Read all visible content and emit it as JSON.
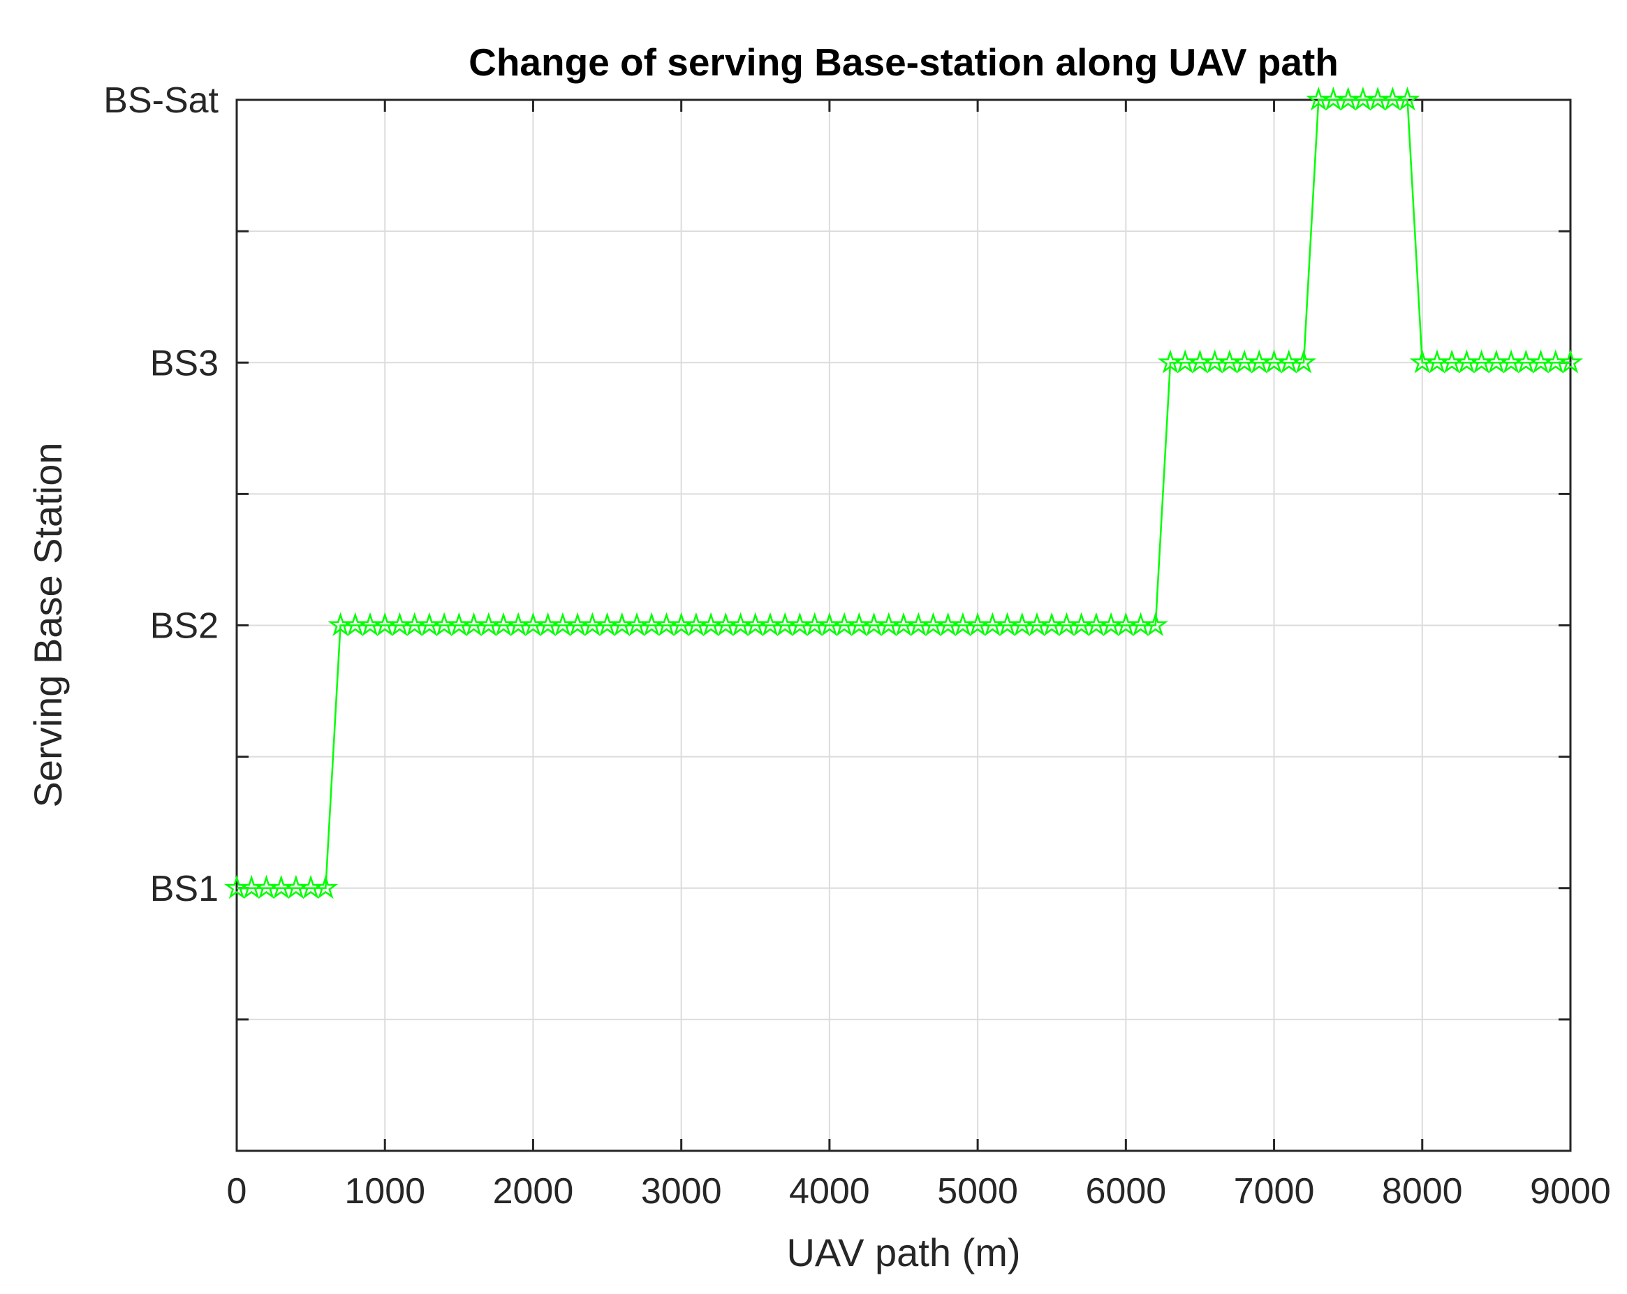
{
  "chart_data": {
    "type": "line",
    "title": "Change of serving Base-station along UAV path",
    "xlabel": "UAV path (m)",
    "ylabel": "Serving Base Station",
    "xlim": [
      0,
      9000
    ],
    "ylim": [
      0,
      4
    ],
    "x_ticks": [
      0,
      1000,
      2000,
      3000,
      4000,
      5000,
      6000,
      7000,
      8000,
      9000
    ],
    "x_tick_labels": [
      "0",
      "1000",
      "2000",
      "3000",
      "4000",
      "5000",
      "6000",
      "7000",
      "8000",
      "9000"
    ],
    "y_ticks": [
      0.5,
      1,
      1.5,
      2,
      2.5,
      3,
      3.5,
      4
    ],
    "y_tick_labels": [
      "",
      "BS1",
      "",
      "BS2",
      "",
      "BS3",
      "",
      "BS-Sat"
    ],
    "grid": true,
    "series": [
      {
        "color": "#00ff00",
        "marker": "pentagram",
        "x": [
          0,
          100,
          200,
          300,
          400,
          500,
          600,
          700,
          800,
          900,
          1000,
          1100,
          1200,
          1300,
          1400,
          1500,
          1600,
          1700,
          1800,
          1900,
          2000,
          2100,
          2200,
          2300,
          2400,
          2500,
          2600,
          2700,
          2800,
          2900,
          3000,
          3100,
          3200,
          3300,
          3400,
          3500,
          3600,
          3700,
          3800,
          3900,
          4000,
          4100,
          4200,
          4300,
          4400,
          4500,
          4600,
          4700,
          4800,
          4900,
          5000,
          5100,
          5200,
          5300,
          5400,
          5500,
          5600,
          5700,
          5800,
          5900,
          6000,
          6100,
          6200,
          6300,
          6400,
          6500,
          6600,
          6700,
          6800,
          6900,
          7000,
          7100,
          7200,
          7300,
          7400,
          7500,
          7600,
          7700,
          7800,
          7900,
          8000,
          8100,
          8200,
          8300,
          8400,
          8500,
          8600,
          8700,
          8800,
          8900,
          9000
        ],
        "y": [
          1,
          1,
          1,
          1,
          1,
          1,
          1,
          2,
          2,
          2,
          2,
          2,
          2,
          2,
          2,
          2,
          2,
          2,
          2,
          2,
          2,
          2,
          2,
          2,
          2,
          2,
          2,
          2,
          2,
          2,
          2,
          2,
          2,
          2,
          2,
          2,
          2,
          2,
          2,
          2,
          2,
          2,
          2,
          2,
          2,
          2,
          2,
          2,
          2,
          2,
          2,
          2,
          2,
          2,
          2,
          2,
          2,
          2,
          2,
          2,
          2,
          2,
          2,
          3,
          3,
          3,
          3,
          3,
          3,
          3,
          3,
          3,
          3,
          4,
          4,
          4,
          4,
          4,
          4,
          4,
          3,
          3,
          3,
          3,
          3,
          3,
          3,
          3,
          3,
          3,
          3
        ]
      }
    ]
  }
}
